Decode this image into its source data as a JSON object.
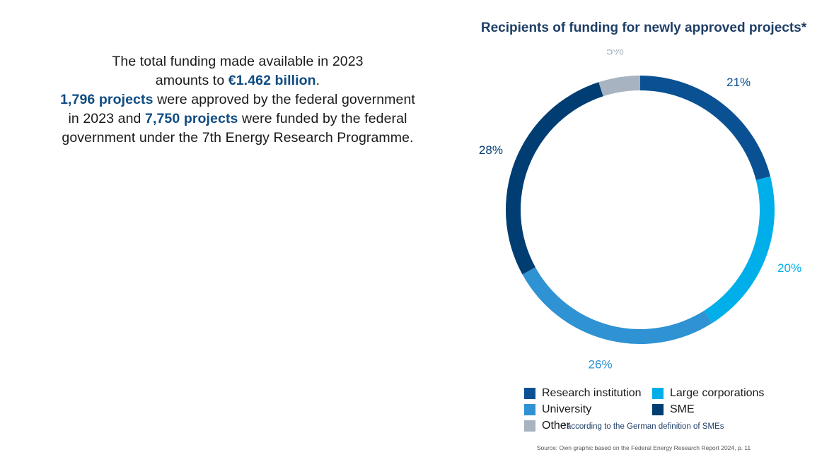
{
  "intro": {
    "line1": "The total funding made available in 2023",
    "line2_pre": "amounts to ",
    "line2_hl": "€1.462 billion",
    "line2_post": ".",
    "line3_hl": "1,796 projects",
    "line3_post": " were approved by the federal government",
    "line4_pre": "in 2023 and ",
    "line4_hl": "7,750 projects",
    "line4_post": " were funded by the federal",
    "line5": "government under the 7th Energy Research Programme."
  },
  "colors": {
    "research_institution": "#0a5193",
    "large_corporations": "#00aeea",
    "university": "#2e92d3",
    "sme": "#003d73",
    "other": "#a7b3c1"
  },
  "chart_data": {
    "type": "pie",
    "variant": "donut",
    "title": "Recipients of funding for newly approved projects*",
    "unit": "%",
    "slices": [
      {
        "name": "Research institution",
        "value": 21,
        "label": "21%",
        "color": "#0a5193"
      },
      {
        "name": "Large corporations",
        "value": 20,
        "label": "20%",
        "color": "#00aeea"
      },
      {
        "name": "University",
        "value": 26,
        "label": "26%",
        "color": "#2e92d3"
      },
      {
        "name": "SME",
        "value": 28,
        "label": "28%",
        "color": "#003d73"
      },
      {
        "name": "Other",
        "value": 5,
        "label": "5%",
        "color": "#a7b3c1"
      }
    ],
    "legend": [
      {
        "label": "Research institution",
        "color": "#0a5193"
      },
      {
        "label": "Large corporations",
        "color": "#00aeea"
      },
      {
        "label": "University",
        "color": "#2e92d3"
      },
      {
        "label": "SME",
        "color": "#003d73"
      },
      {
        "label": "Other",
        "color": "#a7b3c1"
      }
    ],
    "legend_position": "bottom"
  },
  "footnote": "*according to the German definition of SMEs",
  "source": "Source: Own graphic based on the Federal Energy Research Report 2024, p. 11"
}
